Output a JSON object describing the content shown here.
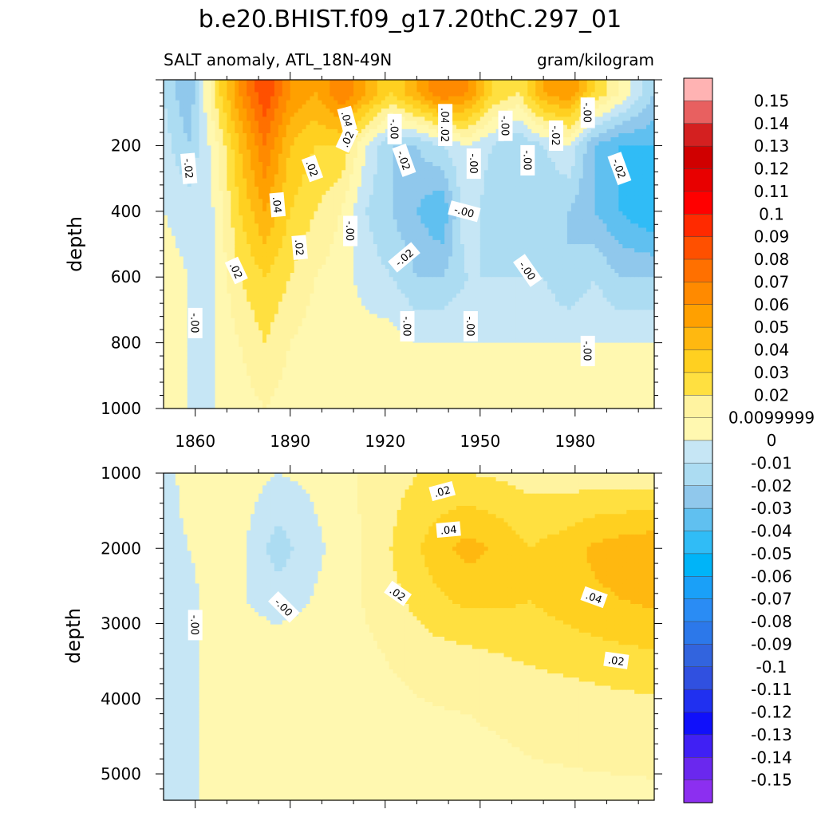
{
  "chart_data": [
    {
      "type": "heatmap",
      "panel": "upper",
      "title": "b.e20.BHIST.f09_g17.20thC.297_01",
      "subtitle_left": "SALT anomaly, ATL_18N-49N",
      "subtitle_right": "gram/kilogram",
      "xlabel": "",
      "ylabel": "depth",
      "xlim": [
        1850,
        2005
      ],
      "ylim": [
        0,
        1000
      ],
      "y_reversed": true,
      "xticks": [
        1860,
        1890,
        1920,
        1950,
        1980
      ],
      "xtick_labels": [
        "1860",
        "1890",
        "1920",
        "1950",
        "1980"
      ],
      "yticks": [
        200,
        400,
        600,
        800,
        1000
      ],
      "ytick_labels": [
        "200",
        "400",
        "600",
        "800",
        "1000"
      ],
      "grid": false,
      "columns": [
        {
          "x": 1850,
          "values": [
            -0.01,
            -0.005,
            0.0,
            0.005,
            0.005,
            0.005
          ]
        },
        {
          "x": 1858,
          "values": [
            -0.03,
            -0.02,
            -0.005,
            0.0,
            0.0,
            0.0
          ]
        },
        {
          "x": 1866,
          "values": [
            0.02,
            0.005,
            0.0,
            0.0,
            0.0,
            0.0
          ]
        },
        {
          "x": 1874,
          "values": [
            0.06,
            0.04,
            0.03,
            0.02,
            0.01,
            0.005
          ]
        },
        {
          "x": 1882,
          "values": [
            0.09,
            0.07,
            0.05,
            0.03,
            0.02,
            0.01
          ]
        },
        {
          "x": 1890,
          "values": [
            0.06,
            0.04,
            0.03,
            0.02,
            0.01,
            0.005
          ]
        },
        {
          "x": 1898,
          "values": [
            0.05,
            0.03,
            0.02,
            0.01,
            0.005,
            0.005
          ]
        },
        {
          "x": 1906,
          "values": [
            0.07,
            0.03,
            0.01,
            0.005,
            0.005,
            0.005
          ]
        },
        {
          "x": 1914,
          "values": [
            0.05,
            0.0,
            -0.01,
            -0.005,
            0.005,
            0.005
          ]
        },
        {
          "x": 1922,
          "values": [
            0.03,
            -0.02,
            -0.02,
            -0.01,
            0.005,
            0.005
          ]
        },
        {
          "x": 1930,
          "values": [
            0.05,
            -0.02,
            -0.03,
            -0.02,
            0.0,
            0.005
          ]
        },
        {
          "x": 1938,
          "values": [
            0.07,
            -0.01,
            -0.04,
            -0.02,
            0.0,
            0.005
          ]
        },
        {
          "x": 1946,
          "values": [
            0.06,
            0.0,
            0.0,
            -0.01,
            0.0,
            0.005
          ]
        },
        {
          "x": 1954,
          "values": [
            0.03,
            -0.01,
            -0.02,
            -0.01,
            0.0,
            0.005
          ]
        },
        {
          "x": 1962,
          "values": [
            0.02,
            -0.02,
            -0.02,
            -0.01,
            0.0,
            0.005
          ]
        },
        {
          "x": 1970,
          "values": [
            0.05,
            -0.01,
            -0.02,
            -0.01,
            0.0,
            0.005
          ]
        },
        {
          "x": 1978,
          "values": [
            0.06,
            0.0,
            -0.02,
            -0.02,
            0.0,
            0.005
          ]
        },
        {
          "x": 1986,
          "values": [
            0.03,
            -0.03,
            -0.03,
            -0.01,
            0.0,
            0.005
          ]
        },
        {
          "x": 1994,
          "values": [
            0.01,
            -0.04,
            -0.04,
            -0.02,
            0.0,
            0.01
          ]
        },
        {
          "x": 2005,
          "values": [
            -0.02,
            -0.04,
            -0.05,
            -0.02,
            0.0,
            0.01
          ]
        }
      ],
      "depths": [
        40,
        200,
        400,
        600,
        800,
        1000
      ],
      "contour_labels": [
        {
          "x": 1858,
          "y": 270,
          "text": "-.02",
          "rot": 85
        },
        {
          "x": 1860,
          "y": 740,
          "text": "-.00",
          "rot": 90
        },
        {
          "x": 1873,
          "y": 580,
          "text": ".02",
          "rot": 65
        },
        {
          "x": 1886,
          "y": 380,
          "text": ".04",
          "rot": 85
        },
        {
          "x": 1897,
          "y": 270,
          "text": ".02",
          "rot": 70
        },
        {
          "x": 1893,
          "y": 510,
          "text": ".02",
          "rot": 85
        },
        {
          "x": 1908,
          "y": 120,
          "text": ".04",
          "rot": 75
        },
        {
          "x": 1908,
          "y": 180,
          "text": ".02",
          "rot": -65
        },
        {
          "x": 1909,
          "y": 460,
          "text": "-.00",
          "rot": 90
        },
        {
          "x": 1923,
          "y": 150,
          "text": "-.00",
          "rot": 90
        },
        {
          "x": 1926,
          "y": 245,
          "text": "-.02",
          "rot": 70
        },
        {
          "x": 1926,
          "y": 540,
          "text": "-.02",
          "rot": -40
        },
        {
          "x": 1927,
          "y": 750,
          "text": "-.00",
          "rot": 90
        },
        {
          "x": 1939,
          "y": 110,
          "text": ".04",
          "rot": 90
        },
        {
          "x": 1939,
          "y": 165,
          "text": ".02",
          "rot": 90
        },
        {
          "x": 1945,
          "y": 400,
          "text": "-.00",
          "rot": 15
        },
        {
          "x": 1947,
          "y": 750,
          "text": "-.00",
          "rot": 90
        },
        {
          "x": 1948,
          "y": 255,
          "text": "-.00",
          "rot": 90
        },
        {
          "x": 1958,
          "y": 140,
          "text": "-.00",
          "rot": 90
        },
        {
          "x": 1965,
          "y": 245,
          "text": "-.00",
          "rot": 90
        },
        {
          "x": 1965,
          "y": 580,
          "text": "-.00",
          "rot": 55
        },
        {
          "x": 1974,
          "y": 170,
          "text": "-.02",
          "rot": 90
        },
        {
          "x": 1984,
          "y": 100,
          "text": "-.00",
          "rot": 90
        },
        {
          "x": 1984,
          "y": 825,
          "text": "-.00",
          "rot": 90
        },
        {
          "x": 1994,
          "y": 270,
          "text": "-.02",
          "rot": 70
        }
      ]
    },
    {
      "type": "heatmap",
      "panel": "lower",
      "xlabel": "",
      "ylabel": "depth",
      "xlim": [
        1850,
        2005
      ],
      "ylim": [
        1000,
        5350
      ],
      "y_reversed": true,
      "xticks": [
        1860,
        1890,
        1920,
        1950,
        1980
      ],
      "yticks": [
        1000,
        2000,
        3000,
        4000,
        5000
      ],
      "ytick_labels": [
        "1000",
        "2000",
        "3000",
        "4000",
        "5000"
      ],
      "grid": false,
      "columns": [
        {
          "x": 1850,
          "values": [
            -0.003,
            -0.003,
            -0.003,
            -0.003,
            -0.003,
            -0.003
          ]
        },
        {
          "x": 1858,
          "values": [
            0.003,
            0.0,
            -0.003,
            -0.003,
            -0.003,
            -0.003
          ]
        },
        {
          "x": 1866,
          "values": [
            0.006,
            0.004,
            0.004,
            0.004,
            0.004,
            0.004
          ]
        },
        {
          "x": 1876,
          "values": [
            0.005,
            0.0,
            0.0,
            0.006,
            0.006,
            0.006
          ]
        },
        {
          "x": 1886,
          "values": [
            0.0,
            -0.015,
            -0.005,
            0.006,
            0.006,
            0.006
          ]
        },
        {
          "x": 1896,
          "values": [
            0.002,
            -0.005,
            0.0,
            0.006,
            0.006,
            0.006
          ]
        },
        {
          "x": 1906,
          "values": [
            0.008,
            0.005,
            0.006,
            0.007,
            0.006,
            0.006
          ]
        },
        {
          "x": 1916,
          "values": [
            0.012,
            0.013,
            0.012,
            0.009,
            0.007,
            0.006
          ]
        },
        {
          "x": 1926,
          "values": [
            0.018,
            0.025,
            0.02,
            0.012,
            0.008,
            0.006
          ]
        },
        {
          "x": 1936,
          "values": [
            0.022,
            0.035,
            0.028,
            0.016,
            0.009,
            0.007
          ]
        },
        {
          "x": 1946,
          "values": [
            0.02,
            0.044,
            0.032,
            0.018,
            0.01,
            0.007
          ]
        },
        {
          "x": 1956,
          "values": [
            0.018,
            0.038,
            0.032,
            0.02,
            0.011,
            0.007
          ]
        },
        {
          "x": 1966,
          "values": [
            0.016,
            0.03,
            0.03,
            0.022,
            0.012,
            0.008
          ]
        },
        {
          "x": 1976,
          "values": [
            0.014,
            0.035,
            0.034,
            0.024,
            0.013,
            0.008
          ]
        },
        {
          "x": 1986,
          "values": [
            0.014,
            0.042,
            0.038,
            0.026,
            0.014,
            0.008
          ]
        },
        {
          "x": 1996,
          "values": [
            0.013,
            0.046,
            0.04,
            0.028,
            0.015,
            0.008
          ]
        },
        {
          "x": 2005,
          "values": [
            0.012,
            0.048,
            0.042,
            0.029,
            0.016,
            0.008
          ]
        }
      ],
      "depths": [
        1000,
        2000,
        2700,
        3400,
        4200,
        5350
      ],
      "contour_labels": [
        {
          "x": 1888,
          "y": 2780,
          "text": "-.00",
          "rot": 45
        },
        {
          "x": 1860,
          "y": 3020,
          "text": "-.00",
          "rot": 90
        },
        {
          "x": 1938,
          "y": 1240,
          "text": ".02",
          "rot": -15
        },
        {
          "x": 1940,
          "y": 1750,
          "text": ".04",
          "rot": -5
        },
        {
          "x": 1924,
          "y": 2600,
          "text": ".02",
          "rot": 35
        },
        {
          "x": 1986,
          "y": 2650,
          "text": ".04",
          "rot": 20
        },
        {
          "x": 1993,
          "y": 3490,
          "text": ".02",
          "rot": 8
        }
      ]
    }
  ],
  "colorbar": {
    "levels": [
      0.15,
      0.14,
      0.13,
      0.12,
      0.11,
      0.1,
      0.09,
      0.08,
      0.07,
      0.06,
      0.05,
      0.04,
      0.03,
      0.02,
      0.0099999,
      0,
      -0.01,
      -0.02,
      -0.03,
      -0.04,
      -0.05,
      -0.06,
      -0.07,
      -0.08,
      -0.09,
      -0.1,
      -0.11,
      -0.12,
      -0.13,
      -0.14,
      -0.15
    ],
    "labels": [
      "0.15",
      "0.14",
      "0.13",
      "0.12",
      "0.11",
      "0.1",
      "0.09",
      "0.08",
      "0.07",
      "0.06",
      "0.05",
      "0.04",
      "0.03",
      "0.02",
      "0.0099999",
      "0",
      "-0.01",
      "-0.02",
      "-0.03",
      "-0.04",
      "-0.05",
      "-0.06",
      "-0.07",
      "-0.08",
      "-0.09",
      "-0.1",
      "-0.11",
      "-0.12",
      "-0.13",
      "-0.14",
      "-0.15"
    ],
    "colors": [
      "#ffb3b3",
      "#e86060",
      "#d42020",
      "#d00000",
      "#e80000",
      "#ff0000",
      "#ff2a00",
      "#ff5000",
      "#ff7000",
      "#ff8a00",
      "#ffa000",
      "#ffb810",
      "#ffd020",
      "#ffe040",
      "#fff3a0",
      "#fff8b0",
      "#c6e6f5",
      "#acdcf2",
      "#90c8ec",
      "#60c0f0",
      "#30bcf6",
      "#00b4f8",
      "#1aa0f8",
      "#2a8cf4",
      "#2c78ea",
      "#3264de",
      "#3050e0",
      "#2030f0",
      "#1010fa",
      "#4020f4",
      "#6a28ee",
      "#8c2ff0"
    ]
  }
}
